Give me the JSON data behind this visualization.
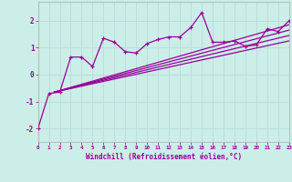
{
  "xlabel": "Windchill (Refroidissement éolien,°C)",
  "background_color": "#cceee8",
  "line_color": "#990099",
  "grid_color": "#aadddd",
  "xlim": [
    0,
    23
  ],
  "ylim": [
    -2.5,
    2.7
  ],
  "yticks": [
    -2,
    -1,
    0,
    1,
    2
  ],
  "xticks": [
    0,
    1,
    2,
    3,
    4,
    5,
    6,
    7,
    8,
    9,
    10,
    11,
    12,
    13,
    14,
    15,
    16,
    17,
    18,
    19,
    20,
    21,
    22,
    23
  ],
  "series_x": [
    0,
    1,
    2,
    3,
    4,
    5,
    6,
    7,
    8,
    9,
    10,
    11,
    12,
    13,
    14,
    15,
    16,
    17,
    18,
    19,
    20,
    21,
    22,
    23
  ],
  "series_y": [
    -2.0,
    -0.7,
    -0.65,
    0.65,
    0.65,
    0.3,
    1.35,
    1.2,
    0.85,
    0.8,
    1.15,
    1.3,
    1.4,
    1.4,
    1.75,
    2.3,
    1.2,
    1.2,
    1.25,
    1.05,
    1.1,
    1.7,
    1.6,
    2.0
  ],
  "regression_lines": [
    {
      "x": [
        1.5,
        23
      ],
      "y": [
        -0.65,
        1.85
      ]
    },
    {
      "x": [
        1.5,
        23
      ],
      "y": [
        -0.65,
        1.65
      ]
    },
    {
      "x": [
        1.5,
        23
      ],
      "y": [
        -0.65,
        1.45
      ]
    },
    {
      "x": [
        1.5,
        23
      ],
      "y": [
        -0.65,
        1.25
      ]
    }
  ]
}
